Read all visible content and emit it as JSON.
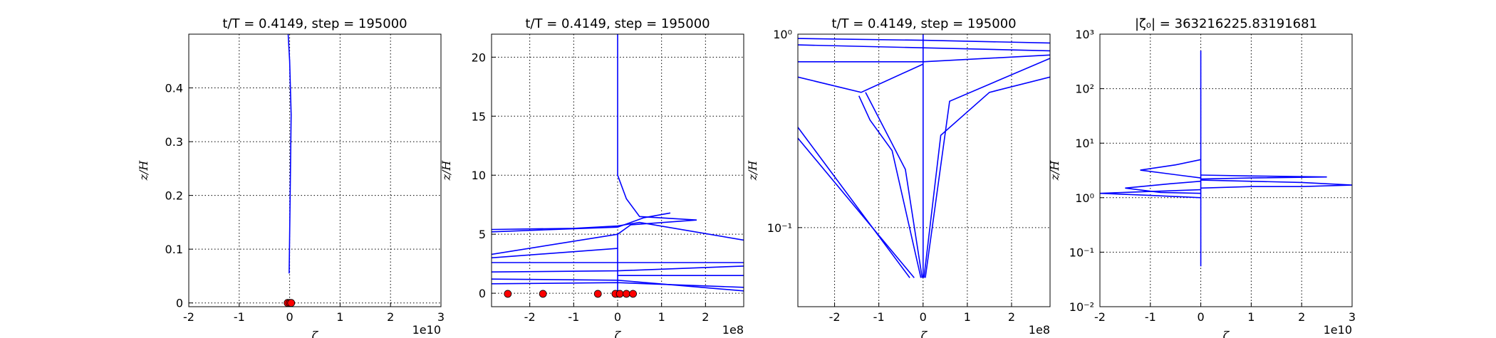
{
  "chart_data": [
    {
      "type": "line",
      "title": "t/T = 0.4149, step = 195000",
      "xlabel": "ζ",
      "ylabel": "z/H",
      "offset_text": "1e10",
      "xlim": [
        -2,
        3
      ],
      "xticks": [
        -2,
        -1,
        0,
        1,
        2,
        3
      ],
      "ylim": [
        -0.007,
        0.5
      ],
      "yticks": [
        0.0,
        0.1,
        0.2,
        0.3,
        0.4
      ],
      "yscale": "linear",
      "grid": true,
      "series": [
        {
          "color": "#0000ff",
          "x": [
            -0.01,
            0.01,
            0.03,
            0.0,
            -0.03
          ],
          "values": [
            0.055,
            0.2,
            0.35,
            0.45,
            0.5
          ]
        }
      ],
      "points": {
        "color": "#ff0000",
        "x": [
          -0.04,
          0.0,
          0.03
        ],
        "values": [
          0.0,
          0.0,
          0.0
        ]
      }
    },
    {
      "type": "line",
      "title": "t/T = 0.4149, step = 195000",
      "xlabel": "ζ",
      "ylabel": "z/H",
      "offset_text": "1e8",
      "xlim": [
        -2.87,
        2.87
      ],
      "xticks": [
        -2,
        -1,
        0,
        1,
        2
      ],
      "ylim": [
        -1.14,
        21.95
      ],
      "yticks": [
        0,
        5,
        10,
        15,
        20
      ],
      "yscale": "linear",
      "grid": true,
      "series": [
        {
          "color": "#0000ff",
          "x": [
            0,
            0,
            0.2,
            0.5,
            1.8,
            0.3,
            0,
            0
          ],
          "values": [
            21.95,
            10,
            8,
            6.5,
            6.2,
            5.8,
            5,
            0
          ]
        },
        {
          "color": "#0000ff",
          "x": [
            -2.87,
            -1,
            0,
            0.5,
            2.87
          ],
          "values": [
            5.4,
            5.5,
            5.7,
            6,
            4.5
          ]
        },
        {
          "color": "#0000ff",
          "x": [
            -2.87,
            0,
            0.6,
            1.2
          ],
          "values": [
            5.2,
            5.6,
            6.4,
            6.8
          ]
        },
        {
          "color": "#0000ff",
          "x": [
            -2.87,
            0
          ],
          "values": [
            3.3,
            5.0
          ]
        },
        {
          "color": "#0000ff",
          "x": [
            -2.87,
            0
          ],
          "values": [
            3.0,
            3.8
          ]
        },
        {
          "color": "#0000ff",
          "x": [
            -2.87,
            0
          ],
          "values": [
            2.6,
            2.6
          ]
        },
        {
          "color": "#0000ff",
          "x": [
            -2.87,
            0,
            2.87
          ],
          "values": [
            1.8,
            1.9,
            2.3
          ]
        },
        {
          "color": "#0000ff",
          "x": [
            0,
            2.87
          ],
          "values": [
            2.6,
            2.6
          ]
        },
        {
          "color": "#0000ff",
          "x": [
            0,
            2.87
          ],
          "values": [
            1.5,
            1.5
          ]
        },
        {
          "color": "#0000ff",
          "x": [
            -2.87,
            0,
            2.87
          ],
          "values": [
            0.8,
            0.9,
            0.5
          ]
        },
        {
          "color": "#0000ff",
          "x": [
            -2.87,
            0,
            2.87
          ],
          "values": [
            1.2,
            1.1,
            0.2
          ]
        }
      ],
      "points": {
        "color": "#ff0000",
        "x": [
          -2.5,
          -1.7,
          -0.45,
          -0.05,
          0.05,
          0.2,
          0.35
        ],
        "values": [
          -0.05,
          -0.05,
          -0.05,
          -0.05,
          -0.05,
          -0.05,
          -0.05
        ]
      }
    },
    {
      "type": "line",
      "title": "t/T = 0.4149, step = 195000",
      "xlabel": "ζ",
      "ylabel": "z/H",
      "offset_text": "1e8",
      "xlim": [
        -2.83,
        2.87
      ],
      "xticks": [
        -2,
        -1,
        0,
        1,
        2
      ],
      "ylim": [
        0.039,
        1
      ],
      "yticks": [
        {
          "value": 0.1,
          "label": "10⁻¹"
        },
        {
          "value": 1,
          "label": "10⁰"
        }
      ],
      "yscale": "log",
      "grid": true,
      "series": [
        {
          "color": "#0000ff",
          "x": [
            -2.83,
            -0.3
          ],
          "values": [
            0.33,
            0.055
          ]
        },
        {
          "color": "#0000ff",
          "x": [
            -2.83,
            -0.2
          ],
          "values": [
            0.29,
            0.055
          ]
        },
        {
          "color": "#0000ff",
          "x": [
            -1.45,
            -1.2,
            -0.7,
            -0.05
          ],
          "values": [
            0.48,
            0.36,
            0.25,
            0.055
          ]
        },
        {
          "color": "#0000ff",
          "x": [
            -1.3,
            -0.4,
            -0.02
          ],
          "values": [
            0.5,
            0.2,
            0.055
          ]
        },
        {
          "color": "#0000ff",
          "x": [
            0.05,
            0.6,
            2.87
          ],
          "values": [
            0.055,
            0.45,
            0.75
          ]
        },
        {
          "color": "#0000ff",
          "x": [
            0.02,
            0.4,
            1.5,
            2.87
          ],
          "values": [
            0.055,
            0.3,
            0.5,
            0.6
          ]
        },
        {
          "color": "#0000ff",
          "x": [
            -2.83,
            0,
            2.87
          ],
          "values": [
            0.95,
            0.93,
            0.9
          ]
        },
        {
          "color": "#0000ff",
          "x": [
            -2.83,
            0,
            2.87
          ],
          "values": [
            0.88,
            0.85,
            0.82
          ]
        },
        {
          "color": "#0000ff",
          "x": [
            -2.83,
            0,
            2.87
          ],
          "values": [
            0.72,
            0.72,
            0.78
          ]
        },
        {
          "color": "#0000ff",
          "x": [
            -2.83,
            -1.4,
            0
          ],
          "values": [
            0.6,
            0.5,
            0.7
          ]
        },
        {
          "color": "#0000ff",
          "x": [
            0,
            0
          ],
          "values": [
            0.055,
            1
          ]
        }
      ]
    },
    {
      "type": "line",
      "title": "|ζ₀| = 363216225.83191681",
      "xlabel": "ζ",
      "ylabel": "z/H",
      "offset_text": "1e10",
      "xlim": [
        -2,
        3
      ],
      "xticks": [
        -2,
        -1,
        0,
        1,
        2,
        3
      ],
      "ylim": [
        0.01,
        1000
      ],
      "yticks": [
        {
          "value": 0.01,
          "label": "10⁻²"
        },
        {
          "value": 0.1,
          "label": "10⁻¹"
        },
        {
          "value": 1,
          "label": "10⁰"
        },
        {
          "value": 10,
          "label": "10¹"
        },
        {
          "value": 100,
          "label": "10²"
        },
        {
          "value": 1000,
          "label": "10³"
        }
      ],
      "yscale": "log",
      "grid": true,
      "series": [
        {
          "color": "#0000ff",
          "x": [
            0,
            0
          ],
          "values": [
            0.055,
            500
          ]
        },
        {
          "color": "#0000ff",
          "x": [
            0,
            -1,
            -2,
            -1,
            0
          ],
          "values": [
            1.0,
            1.1,
            1.2,
            1.3,
            1.4
          ]
        },
        {
          "color": "#0000ff",
          "x": [
            0,
            1,
            2,
            3,
            2,
            0
          ],
          "values": [
            1.5,
            1.6,
            1.6,
            1.7,
            1.9,
            2.1
          ]
        },
        {
          "color": "#0000ff",
          "x": [
            0,
            -1.2,
            -0.5,
            0
          ],
          "values": [
            2.3,
            3.2,
            4,
            5
          ]
        },
        {
          "color": "#0000ff",
          "x": [
            0,
            1,
            2.5,
            1,
            0
          ],
          "values": [
            2.2,
            2.3,
            2.4,
            2.5,
            2.6
          ]
        },
        {
          "color": "#0000ff",
          "x": [
            0,
            -0.8,
            -1.5,
            -0.6,
            0
          ],
          "values": [
            1.2,
            1.25,
            1.5,
            1.8,
            2.0
          ]
        }
      ]
    }
  ]
}
